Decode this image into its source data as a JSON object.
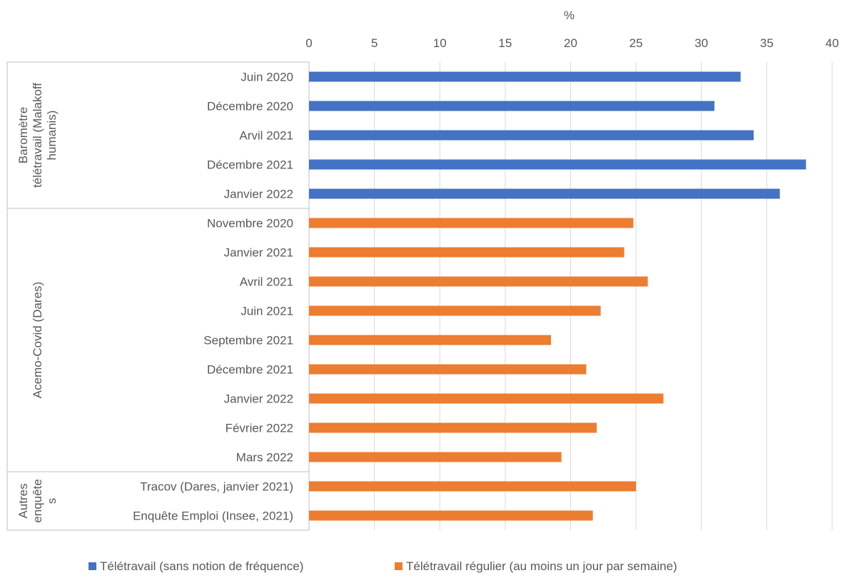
{
  "chart_data": {
    "type": "bar",
    "orientation": "horizontal",
    "title": "",
    "xlabel": "%",
    "ylabel": "",
    "xlim": [
      0,
      40
    ],
    "xticks": [
      0,
      5,
      10,
      15,
      20,
      25,
      30,
      35,
      40
    ],
    "x_axis_position": "top",
    "grid": true,
    "legend_position": "bottom",
    "colors": {
      "blue": "#4472C4",
      "orange": "#ED7D31"
    },
    "series": [
      {
        "name": "Télétravail (sans notion de fréquence)",
        "color": "#4472C4"
      },
      {
        "name": "Télétravail régulier (au moins un jour par semaine)",
        "color": "#ED7D31"
      }
    ],
    "groups": [
      {
        "label": "Baromètre télétravail (Malakoff humanis)",
        "label_lines": [
          "Baromètre",
          "télétravail (Malakoff",
          "humanis)"
        ],
        "series": 0,
        "categories": [
          "Juin 2020",
          "Décembre 2020",
          "Arvil 2021",
          "Décembre 2021",
          "Janvier 2022"
        ],
        "values": [
          33,
          31,
          34,
          38,
          36
        ]
      },
      {
        "label": "Acemo-Covid (Dares)",
        "label_lines": [
          "Acemo-Covid (Dares)"
        ],
        "series": 1,
        "categories": [
          "Novembre 2020",
          "Janvier 2021",
          "Avril 2021",
          "Juin 2021",
          "Septembre 2021",
          "Décembre 2021",
          "Janvier 2022",
          "Février 2022",
          "Mars 2022"
        ],
        "values": [
          24.8,
          24.1,
          25.9,
          22.3,
          18.5,
          21.2,
          27.1,
          22,
          19.3
        ]
      },
      {
        "label": "Autres enquêtes",
        "label_lines": [
          "Autres",
          "enquête",
          "s"
        ],
        "series": 1,
        "categories": [
          "Tracov (Dares, janvier 2021)",
          "Enquête Emploi (Insee, 2021)"
        ],
        "values": [
          25,
          21.7
        ]
      }
    ]
  }
}
